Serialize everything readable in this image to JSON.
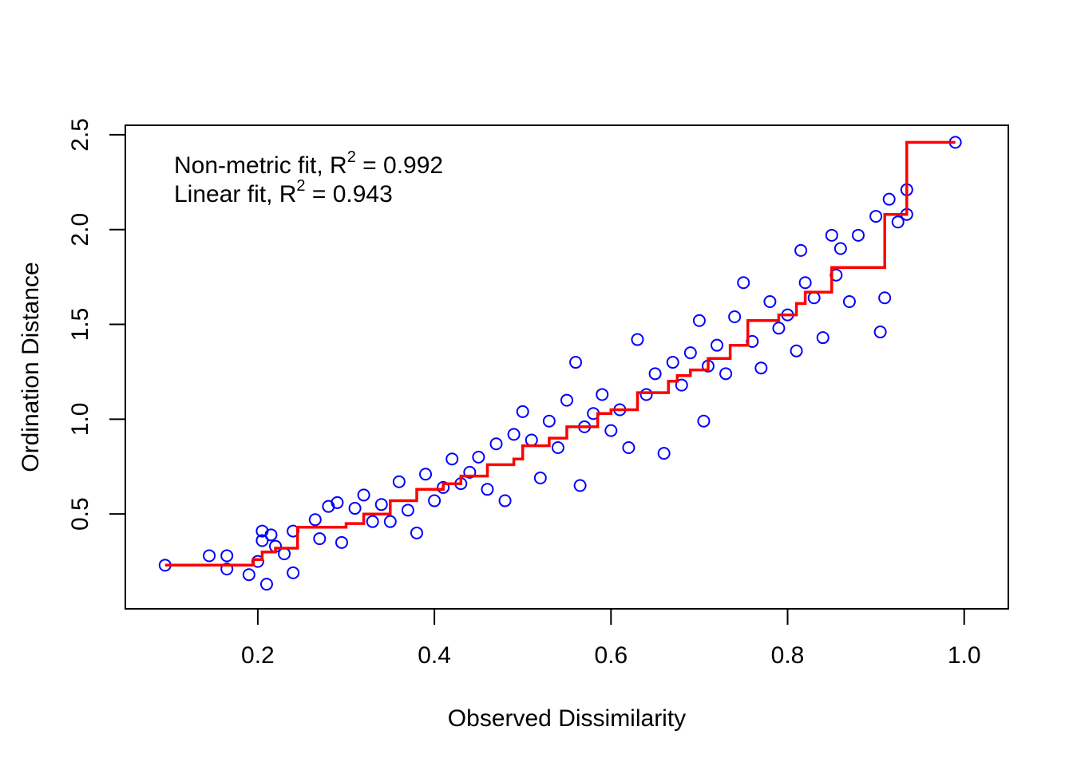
{
  "chart_data": {
    "type": "scatter",
    "xlabel": "Observed Dissimilarity",
    "ylabel": "Ordination Distance",
    "xlim": [
      0.05,
      1.05
    ],
    "ylim": [
      0.0,
      2.55
    ],
    "xticks": [
      "0.2",
      "0.4",
      "0.6",
      "0.8",
      "1.0"
    ],
    "yticks": [
      "0.5",
      "1.0",
      "1.5",
      "2.0",
      "2.5"
    ],
    "annotations": {
      "nonmetric_label": "Non-metric fit, R",
      "nonmetric_sup": "2",
      "nonmetric_value": " = 0.992",
      "linear_label": "Linear fit, R",
      "linear_sup": "2",
      "linear_value": " = 0.943"
    },
    "series": [
      {
        "type": "scatter",
        "color": "#0000FF",
        "marker": "open-circle",
        "points": [
          [
            0.095,
            0.23
          ],
          [
            0.145,
            0.28
          ],
          [
            0.165,
            0.28
          ],
          [
            0.165,
            0.21
          ],
          [
            0.19,
            0.18
          ],
          [
            0.2,
            0.25
          ],
          [
            0.205,
            0.41
          ],
          [
            0.205,
            0.36
          ],
          [
            0.21,
            0.13
          ],
          [
            0.215,
            0.39
          ],
          [
            0.22,
            0.33
          ],
          [
            0.23,
            0.29
          ],
          [
            0.24,
            0.41
          ],
          [
            0.24,
            0.19
          ],
          [
            0.265,
            0.47
          ],
          [
            0.27,
            0.37
          ],
          [
            0.28,
            0.54
          ],
          [
            0.29,
            0.56
          ],
          [
            0.295,
            0.35
          ],
          [
            0.31,
            0.53
          ],
          [
            0.32,
            0.6
          ],
          [
            0.33,
            0.46
          ],
          [
            0.34,
            0.55
          ],
          [
            0.35,
            0.46
          ],
          [
            0.36,
            0.67
          ],
          [
            0.37,
            0.52
          ],
          [
            0.38,
            0.4
          ],
          [
            0.39,
            0.71
          ],
          [
            0.4,
            0.57
          ],
          [
            0.41,
            0.64
          ],
          [
            0.42,
            0.79
          ],
          [
            0.43,
            0.66
          ],
          [
            0.44,
            0.72
          ],
          [
            0.45,
            0.8
          ],
          [
            0.46,
            0.63
          ],
          [
            0.47,
            0.87
          ],
          [
            0.48,
            0.57
          ],
          [
            0.49,
            0.92
          ],
          [
            0.5,
            1.04
          ],
          [
            0.51,
            0.89
          ],
          [
            0.52,
            0.69
          ],
          [
            0.53,
            0.99
          ],
          [
            0.54,
            0.85
          ],
          [
            0.55,
            1.1
          ],
          [
            0.56,
            1.3
          ],
          [
            0.565,
            0.65
          ],
          [
            0.57,
            0.96
          ],
          [
            0.58,
            1.03
          ],
          [
            0.59,
            1.13
          ],
          [
            0.6,
            0.94
          ],
          [
            0.61,
            1.05
          ],
          [
            0.62,
            0.85
          ],
          [
            0.63,
            1.42
          ],
          [
            0.64,
            1.13
          ],
          [
            0.65,
            1.24
          ],
          [
            0.66,
            0.82
          ],
          [
            0.67,
            1.3
          ],
          [
            0.68,
            1.18
          ],
          [
            0.69,
            1.35
          ],
          [
            0.7,
            1.52
          ],
          [
            0.705,
            0.99
          ],
          [
            0.71,
            1.28
          ],
          [
            0.72,
            1.39
          ],
          [
            0.73,
            1.24
          ],
          [
            0.74,
            1.54
          ],
          [
            0.75,
            1.72
          ],
          [
            0.76,
            1.41
          ],
          [
            0.77,
            1.27
          ],
          [
            0.78,
            1.62
          ],
          [
            0.79,
            1.48
          ],
          [
            0.8,
            1.55
          ],
          [
            0.81,
            1.36
          ],
          [
            0.815,
            1.89
          ],
          [
            0.82,
            1.72
          ],
          [
            0.83,
            1.64
          ],
          [
            0.84,
            1.43
          ],
          [
            0.85,
            1.97
          ],
          [
            0.855,
            1.76
          ],
          [
            0.86,
            1.9
          ],
          [
            0.87,
            1.62
          ],
          [
            0.88,
            1.97
          ],
          [
            0.9,
            2.07
          ],
          [
            0.905,
            1.46
          ],
          [
            0.91,
            1.64
          ],
          [
            0.915,
            2.16
          ],
          [
            0.925,
            2.04
          ],
          [
            0.935,
            2.21
          ],
          [
            0.935,
            2.08
          ],
          [
            0.99,
            2.46
          ]
        ]
      },
      {
        "type": "step",
        "color": "#FF0000",
        "points": [
          [
            0.095,
            0.23
          ],
          [
            0.195,
            0.23
          ],
          [
            0.195,
            0.26
          ],
          [
            0.205,
            0.26
          ],
          [
            0.205,
            0.3
          ],
          [
            0.22,
            0.3
          ],
          [
            0.22,
            0.32
          ],
          [
            0.245,
            0.32
          ],
          [
            0.245,
            0.43
          ],
          [
            0.3,
            0.43
          ],
          [
            0.3,
            0.45
          ],
          [
            0.32,
            0.45
          ],
          [
            0.32,
            0.5
          ],
          [
            0.35,
            0.5
          ],
          [
            0.35,
            0.57
          ],
          [
            0.38,
            0.57
          ],
          [
            0.38,
            0.63
          ],
          [
            0.41,
            0.63
          ],
          [
            0.41,
            0.66
          ],
          [
            0.43,
            0.66
          ],
          [
            0.43,
            0.7
          ],
          [
            0.46,
            0.7
          ],
          [
            0.46,
            0.76
          ],
          [
            0.49,
            0.76
          ],
          [
            0.49,
            0.79
          ],
          [
            0.5,
            0.79
          ],
          [
            0.5,
            0.86
          ],
          [
            0.53,
            0.86
          ],
          [
            0.53,
            0.9
          ],
          [
            0.55,
            0.9
          ],
          [
            0.55,
            0.96
          ],
          [
            0.585,
            0.96
          ],
          [
            0.585,
            1.03
          ],
          [
            0.6,
            1.03
          ],
          [
            0.6,
            1.05
          ],
          [
            0.63,
            1.05
          ],
          [
            0.63,
            1.14
          ],
          [
            0.665,
            1.14
          ],
          [
            0.665,
            1.2
          ],
          [
            0.675,
            1.2
          ],
          [
            0.675,
            1.23
          ],
          [
            0.69,
            1.23
          ],
          [
            0.69,
            1.26
          ],
          [
            0.71,
            1.26
          ],
          [
            0.71,
            1.32
          ],
          [
            0.735,
            1.32
          ],
          [
            0.735,
            1.39
          ],
          [
            0.755,
            1.39
          ],
          [
            0.755,
            1.52
          ],
          [
            0.79,
            1.52
          ],
          [
            0.79,
            1.55
          ],
          [
            0.81,
            1.55
          ],
          [
            0.81,
            1.61
          ],
          [
            0.82,
            1.61
          ],
          [
            0.82,
            1.67
          ],
          [
            0.85,
            1.67
          ],
          [
            0.85,
            1.8
          ],
          [
            0.91,
            1.8
          ],
          [
            0.91,
            2.08
          ],
          [
            0.935,
            2.08
          ],
          [
            0.935,
            2.46
          ],
          [
            0.99,
            2.46
          ]
        ]
      }
    ]
  }
}
